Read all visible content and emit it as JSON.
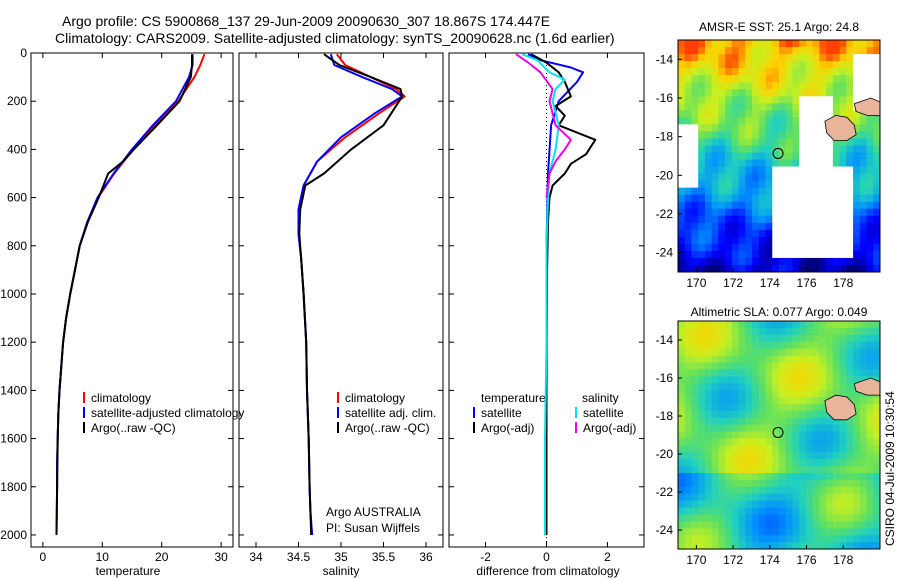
{
  "header": {
    "line1": "Argo profile: CS 5900868_137 29-Jun-2009 20090630_307 18.867S 174.447E",
    "line2": "Climatology: CARS2009. Satellite-adjusted climatology: synTS_20090628.nc (1.6d earlier)"
  },
  "side_label": "CSIRO 04-Jul-2009 10:30:54",
  "colors": {
    "climatology": "#ff0000",
    "satellite": "#0000ff",
    "argo": "#000000",
    "cyan": "#00e5ee",
    "magenta": "#ee00ee"
  },
  "chart_data": [
    {
      "type": "line",
      "id": "temperature",
      "xlabel": "temperature",
      "xlim": [
        -2,
        32
      ],
      "ylim": [
        2050,
        0
      ],
      "xticks": [
        0,
        10,
        20,
        30
      ],
      "yticks": [
        0,
        200,
        400,
        600,
        800,
        1000,
        1200,
        1400,
        1600,
        1800,
        2000
      ],
      "series": [
        {
          "name": "climatology",
          "color": "#ff0000",
          "x": [
            27.2,
            26.5,
            25.5,
            22.8,
            18.8,
            15.2,
            12.0,
            9.3,
            7.5,
            6.2,
            5.4,
            4.6,
            3.9,
            3.4,
            3.1,
            2.8,
            2.6,
            2.5,
            2.4,
            2.4
          ],
          "y": [
            5,
            50,
            100,
            200,
            300,
            400,
            500,
            600,
            700,
            800,
            900,
            1000,
            1100,
            1200,
            1300,
            1400,
            1500,
            1600,
            1700,
            1800
          ]
        },
        {
          "name": "satellite-adjusted climatology",
          "color": "#0000ff",
          "x": [
            25.2,
            25.2,
            24.6,
            22.4,
            18.5,
            15.0,
            11.9,
            9.2,
            7.5,
            6.2,
            5.4,
            4.6,
            3.9,
            3.4,
            3.1,
            2.8,
            2.6,
            2.5,
            2.4,
            2.4,
            2.3
          ],
          "y": [
            5,
            50,
            100,
            200,
            300,
            400,
            500,
            600,
            700,
            800,
            900,
            1000,
            1100,
            1200,
            1300,
            1400,
            1500,
            1600,
            1700,
            1800,
            2000
          ]
        },
        {
          "name": "Argo(..raw -QC)",
          "color": "#000000",
          "x": [
            25.1,
            25.1,
            24.9,
            23.0,
            19.2,
            15.3,
            13.5,
            11.0,
            9.4,
            7.6,
            6.2,
            5.4,
            4.6,
            3.9,
            3.4,
            3.1,
            2.8,
            2.6,
            2.5,
            2.4,
            2.3
          ],
          "y": [
            5,
            50,
            100,
            200,
            300,
            400,
            450,
            500,
            600,
            700,
            800,
            900,
            1000,
            1100,
            1200,
            1300,
            1400,
            1500,
            1600,
            1800,
            2000
          ]
        }
      ],
      "legend": [
        {
          "label": "climatology",
          "color": "#ff0000"
        },
        {
          "label": "satellite-adjusted climatology",
          "color": "#0000ff"
        },
        {
          "label": "Argo(..raw -QC)",
          "color": "#000000"
        }
      ]
    },
    {
      "type": "line",
      "id": "salinity",
      "xlabel": "salinity",
      "xlim": [
        33.8,
        36.2
      ],
      "ylim": [
        2050,
        0
      ],
      "xticks": [
        34,
        34.5,
        35,
        35.5,
        36
      ],
      "series": [
        {
          "name": "climatology",
          "color": "#ff0000",
          "x": [
            34.95,
            35.05,
            35.35,
            35.65,
            35.75,
            35.45,
            35.05,
            34.72,
            34.56,
            34.5,
            34.5,
            34.53,
            34.56,
            34.59,
            34.6,
            34.62,
            34.63,
            34.64,
            34.65,
            34.66
          ],
          "y": [
            5,
            50,
            100,
            150,
            180,
            250,
            350,
            450,
            550,
            650,
            750,
            850,
            1000,
            1200,
            1400,
            1600,
            1800,
            1900,
            1950,
            2000
          ]
        },
        {
          "name": "satellite adj. clim.",
          "color": "#0000ff",
          "x": [
            34.88,
            34.92,
            35.25,
            35.6,
            35.72,
            35.4,
            35.0,
            34.72,
            34.56,
            34.5,
            34.5,
            34.53,
            34.56,
            34.59,
            34.6,
            34.62,
            34.63,
            34.64,
            34.65,
            34.66
          ],
          "y": [
            5,
            50,
            100,
            150,
            180,
            250,
            350,
            450,
            550,
            650,
            750,
            850,
            1000,
            1200,
            1400,
            1600,
            1800,
            1900,
            1950,
            2000
          ]
        },
        {
          "name": "Argo(..raw -QC)",
          "color": "#000000",
          "x": [
            34.8,
            34.98,
            35.35,
            35.7,
            35.72,
            35.5,
            35.12,
            34.8,
            34.58,
            34.52,
            34.51,
            34.53,
            34.56,
            34.59,
            34.6,
            34.62,
            34.63,
            34.64,
            34.65
          ],
          "y": [
            5,
            50,
            100,
            150,
            180,
            300,
            400,
            500,
            550,
            650,
            750,
            850,
            1000,
            1200,
            1400,
            1600,
            1800,
            1900,
            2000
          ]
        }
      ],
      "legend": [
        {
          "label": "climatology",
          "color": "#ff0000"
        },
        {
          "label": "satellite adj. clim.",
          "color": "#0000ff"
        },
        {
          "label": "Argo(..raw -QC)",
          "color": "#000000"
        }
      ],
      "annotation": [
        "Argo AUSTRALIA",
        "PI: Susan Wijffels"
      ]
    },
    {
      "type": "line",
      "id": "difference",
      "xlabel": "difference from climatology",
      "xlim": [
        -3.2,
        3.2
      ],
      "ylim": [
        2050,
        0
      ],
      "xticks": [
        -2,
        0,
        2
      ],
      "zero_line": true,
      "series": [
        {
          "name": "temperature satellite",
          "color": "#0000ff",
          "x": [
            -0.6,
            -0.2,
            0.8,
            1.2,
            1.0,
            0.4,
            0.15,
            0.05,
            0.0,
            0.0,
            0.0,
            0.0
          ],
          "y": [
            5,
            30,
            60,
            80,
            120,
            200,
            300,
            500,
            800,
            1200,
            1600,
            2000
          ]
        },
        {
          "name": "temperature Argo(-adj)",
          "color": "#000000",
          "x": [
            -0.5,
            0.0,
            0.4,
            0.6,
            0.8,
            0.3,
            0.6,
            0.4,
            1.6,
            1.3,
            0.8,
            0.6,
            0.2,
            0.1,
            0.05,
            0.02,
            0.0,
            0.0
          ],
          "y": [
            5,
            40,
            80,
            120,
            180,
            220,
            260,
            300,
            360,
            420,
            460,
            500,
            550,
            600,
            700,
            900,
            1400,
            2000
          ]
        },
        {
          "name": "salinity satellite",
          "color": "#00e5ee",
          "x": [
            -0.8,
            -0.3,
            0.1,
            0.6,
            0.3,
            0.2,
            0.4,
            0.3,
            0.1,
            0.05,
            0.0,
            0.0,
            -0.05,
            -0.05,
            -0.05
          ],
          "y": [
            5,
            30,
            80,
            110,
            150,
            200,
            300,
            400,
            500,
            600,
            800,
            1200,
            1600,
            1900,
            2000
          ]
        },
        {
          "name": "salinity Argo(-adj)",
          "color": "#ee00ee",
          "x": [
            -1.0,
            -0.6,
            -0.2,
            0.2,
            0.1,
            0.3,
            0.8,
            0.6,
            0.3,
            0.1,
            0.05,
            0.0
          ],
          "y": [
            5,
            40,
            80,
            150,
            200,
            300,
            360,
            400,
            450,
            500,
            550,
            600
          ]
        }
      ],
      "legend_left_title": "temperature",
      "legend_right_title": "salinity",
      "legend_left": [
        {
          "label": "satellite",
          "color": "#0000ff"
        },
        {
          "label": "Argo(-adj)",
          "color": "#000000"
        }
      ],
      "legend_right": [
        {
          "label": "satellite",
          "color": "#00e5ee"
        },
        {
          "label": "Argo(-adj)",
          "color": "#ee00ee"
        }
      ]
    },
    {
      "type": "heatmap",
      "id": "sst-map",
      "title": "AMSR-E SST: 25.1  Argo: 24.8",
      "xlim": [
        169,
        180
      ],
      "ylim": [
        -25,
        -13
      ],
      "xticks": [
        170,
        172,
        174,
        176,
        178
      ],
      "yticks": [
        -14,
        -16,
        -18,
        -20,
        -22,
        -24
      ],
      "marker": {
        "lon": 174.447,
        "lat": -18.867
      }
    },
    {
      "type": "heatmap",
      "id": "sla-map",
      "title": "Altimetric SLA: 0.077  Argo: 0.049",
      "xlim": [
        169,
        180
      ],
      "ylim": [
        -25,
        -13
      ],
      "xticks": [
        170,
        172,
        174,
        176,
        178
      ],
      "yticks": [
        -14,
        -16,
        -18,
        -20,
        -22,
        -24
      ],
      "marker": {
        "lon": 174.447,
        "lat": -18.867
      }
    }
  ]
}
